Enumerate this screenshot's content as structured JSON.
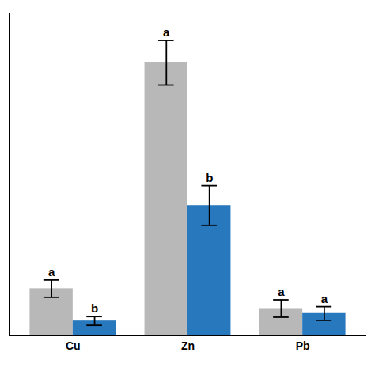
{
  "chart_data": {
    "type": "bar",
    "categories": [
      "Cu",
      "Zn",
      "Pb"
    ],
    "series": [
      {
        "color": "#b8b8b8",
        "values": [
          3.8,
          22.0,
          2.2
        ],
        "errors": [
          0.7,
          1.8,
          0.7
        ],
        "labels": [
          "a",
          "a",
          "a"
        ]
      },
      {
        "color": "#2878be",
        "values": [
          1.2,
          10.5,
          1.8
        ],
        "errors": [
          0.35,
          1.6,
          0.55
        ],
        "labels": [
          "b",
          "b",
          "a"
        ]
      }
    ],
    "ylim": [
      0,
      26
    ],
    "tick_labels": "x",
    "grid": false
  }
}
